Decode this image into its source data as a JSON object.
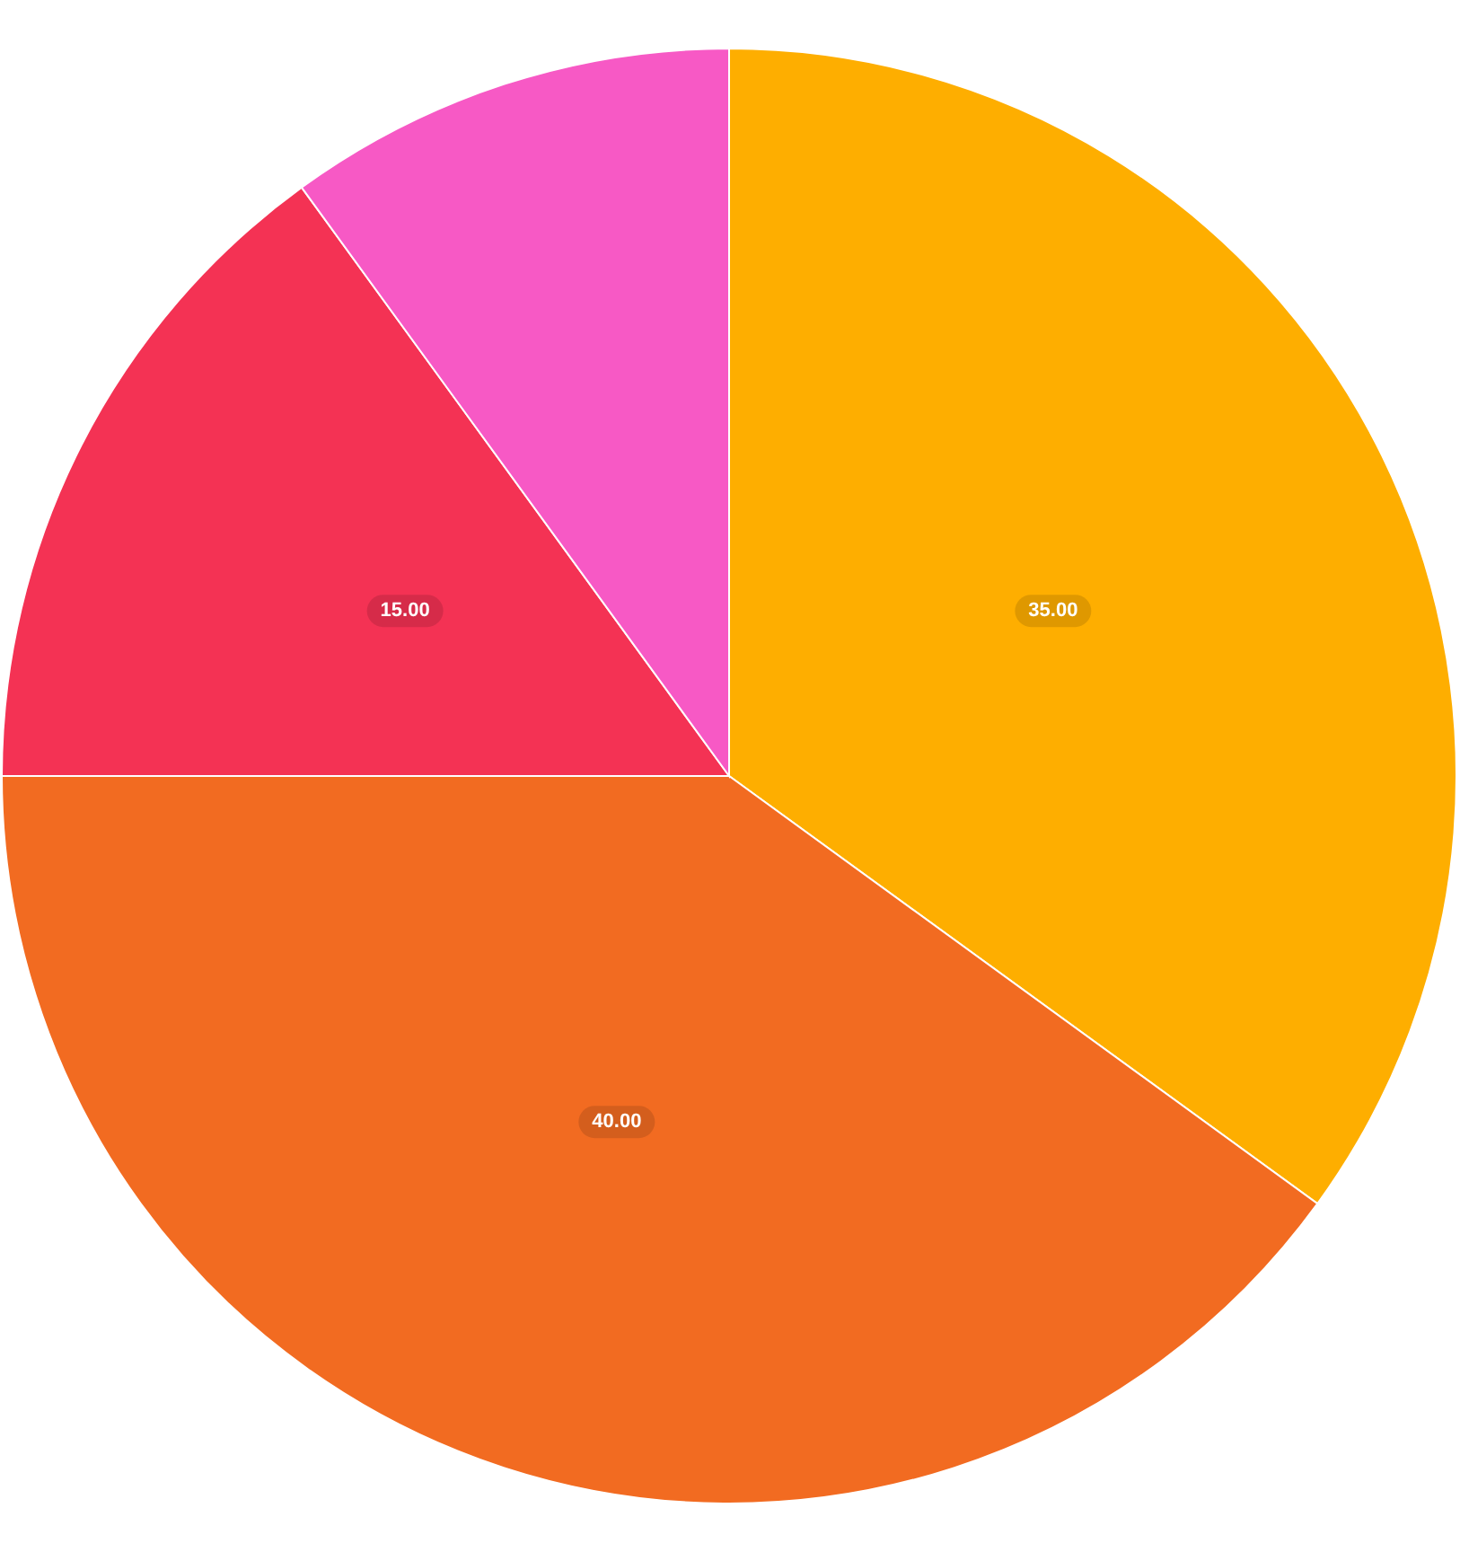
{
  "chart_data": {
    "type": "pie",
    "categories": [
      null,
      null,
      null,
      null
    ],
    "values": [
      35,
      40,
      15,
      10
    ],
    "colors": [
      "#feae00",
      "#f26b21",
      "#f43254",
      "#f759c5"
    ],
    "value_labels": [
      "35.00",
      "40.00",
      "15.00",
      null
    ]
  }
}
